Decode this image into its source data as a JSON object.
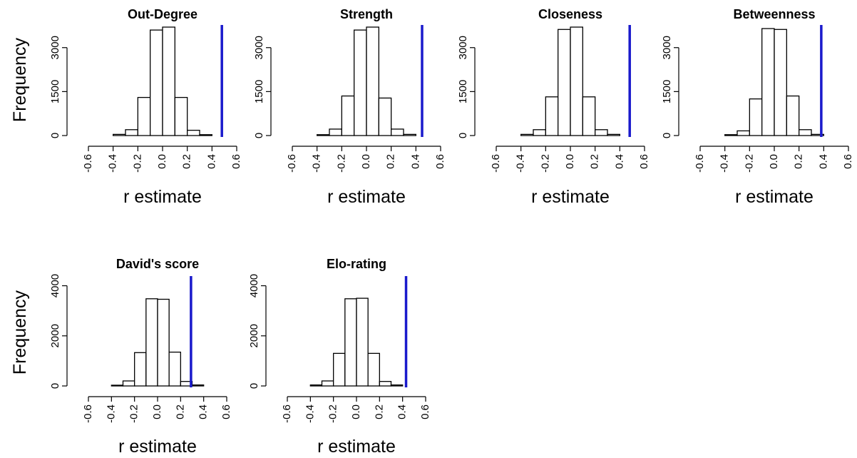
{
  "chart_data": [
    {
      "type": "histogram",
      "title": "Out-Degree",
      "xlabel": "r estimate",
      "ylabel": "Frequency",
      "x_ticks": [
        "-0.6",
        "-0.4",
        "-0.2",
        "0.0",
        "0.2",
        "0.4",
        "0.6"
      ],
      "y_ticks": [
        "0",
        "1500",
        "3000"
      ],
      "xlim": [
        -0.6,
        0.6
      ],
      "ylim": [
        0,
        3700
      ],
      "bin_edges": [
        -0.4,
        -0.3,
        -0.2,
        -0.1,
        0.0,
        0.1,
        0.2,
        0.3,
        0.4
      ],
      "counts": [
        40,
        200,
        1300,
        3600,
        3700,
        1300,
        180,
        30
      ],
      "observed_r": 0.48,
      "observed_color": "#1a1acc"
    },
    {
      "type": "histogram",
      "title": "Strength",
      "xlabel": "r estimate",
      "ylabel": "",
      "x_ticks": [
        "-0.6",
        "-0.4",
        "-0.2",
        "0.0",
        "0.2",
        "0.4",
        "0.6"
      ],
      "y_ticks": [
        "0",
        "1500",
        "3000"
      ],
      "xlim": [
        -0.6,
        0.6
      ],
      "ylim": [
        0,
        3700
      ],
      "bin_edges": [
        -0.4,
        -0.3,
        -0.2,
        -0.1,
        0.0,
        0.1,
        0.2,
        0.3,
        0.4
      ],
      "counts": [
        30,
        220,
        1350,
        3600,
        3700,
        1280,
        220,
        40
      ],
      "observed_r": 0.45,
      "observed_color": "#1a1acc"
    },
    {
      "type": "histogram",
      "title": "Closeness",
      "xlabel": "r estimate",
      "ylabel": "",
      "x_ticks": [
        "-0.6",
        "-0.4",
        "-0.2",
        "0.0",
        "0.2",
        "0.4",
        "0.6"
      ],
      "y_ticks": [
        "0",
        "1500",
        "3000"
      ],
      "xlim": [
        -0.6,
        0.6
      ],
      "ylim": [
        0,
        3700
      ],
      "bin_edges": [
        -0.4,
        -0.3,
        -0.2,
        -0.1,
        0.0,
        0.1,
        0.2,
        0.3,
        0.4
      ],
      "counts": [
        40,
        200,
        1320,
        3620,
        3700,
        1320,
        200,
        40
      ],
      "observed_r": 0.48,
      "observed_color": "#1a1acc"
    },
    {
      "type": "histogram",
      "title": "Betweenness",
      "xlabel": "r estimate",
      "ylabel": "",
      "x_ticks": [
        "-0.6",
        "-0.4",
        "-0.2",
        "0.0",
        "0.2",
        "0.4",
        "0.6"
      ],
      "y_ticks": [
        "0",
        "1500",
        "3000"
      ],
      "xlim": [
        -0.6,
        0.6
      ],
      "ylim": [
        0,
        3700
      ],
      "bin_edges": [
        -0.4,
        -0.3,
        -0.2,
        -0.1,
        0.0,
        0.1,
        0.2,
        0.3,
        0.4
      ],
      "counts": [
        30,
        160,
        1250,
        3650,
        3620,
        1350,
        200,
        40
      ],
      "observed_r": 0.38,
      "observed_color": "#1a1acc"
    },
    {
      "type": "histogram",
      "title": "David's score",
      "xlabel": "r estimate",
      "ylabel": "Frequency",
      "x_ticks": [
        "-0.6",
        "-0.4",
        "-0.2",
        "0.0",
        "0.2",
        "0.4",
        "0.6"
      ],
      "y_ticks": [
        "0",
        "2000",
        "4000"
      ],
      "xlim": [
        -0.6,
        0.6
      ],
      "ylim": [
        0,
        4300
      ],
      "bin_edges": [
        -0.4,
        -0.3,
        -0.2,
        -0.1,
        0.0,
        0.1,
        0.2,
        0.3,
        0.4
      ],
      "counts": [
        30,
        200,
        1330,
        3480,
        3460,
        1350,
        180,
        40
      ],
      "observed_r": 0.29,
      "observed_color": "#1a1acc"
    },
    {
      "type": "histogram",
      "title": "Elo-rating",
      "xlabel": "r estimate",
      "ylabel": "",
      "x_ticks": [
        "-0.6",
        "-0.4",
        "-0.2",
        "0.0",
        "0.2",
        "0.4",
        "0.6"
      ],
      "y_ticks": [
        "0",
        "2000",
        "4000"
      ],
      "xlim": [
        -0.6,
        0.6
      ],
      "ylim": [
        0,
        4300
      ],
      "bin_edges": [
        -0.4,
        -0.3,
        -0.2,
        -0.1,
        0.0,
        0.1,
        0.2,
        0.3,
        0.4
      ],
      "counts": [
        40,
        200,
        1300,
        3480,
        3500,
        1300,
        180,
        40
      ],
      "observed_r": 0.43,
      "observed_color": "#1a1acc"
    }
  ]
}
